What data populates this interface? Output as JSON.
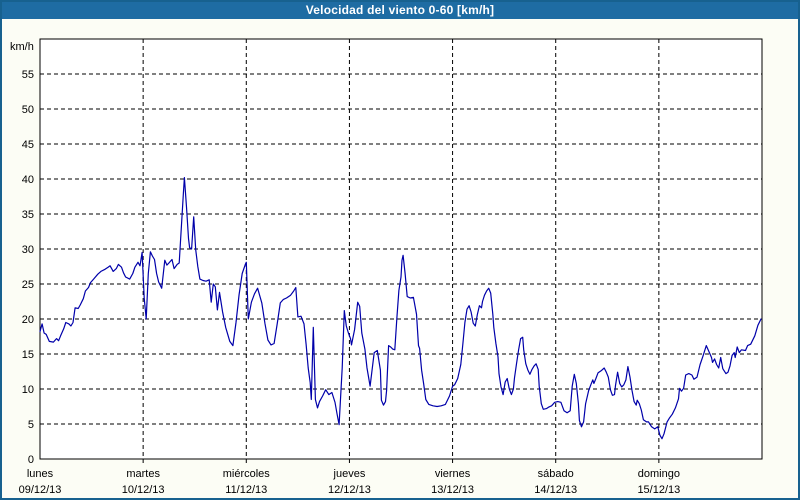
{
  "window": {
    "title": "Velocidad del viento 0-60 [km/h]"
  },
  "colors": {
    "title_bar_bg": "#1e6ca3",
    "title_text": "#ffffff",
    "window_border": "#17618f",
    "window_bg": "#fcfdf5",
    "plot_bg": "#ffffff",
    "grid": "#000000",
    "axis": "#000000",
    "text": "#000000",
    "series_line": "#0000aa"
  },
  "chart_data": {
    "type": "line",
    "title": "Velocidad del viento 0-60 [km/h]",
    "ylabel": "km/h",
    "xlabel": "",
    "ylim": [
      0,
      60
    ],
    "ytick_step": 5,
    "yticks": [
      0,
      5,
      10,
      15,
      20,
      25,
      30,
      35,
      40,
      45,
      50,
      55
    ],
    "grid": "dashed",
    "legend": "none",
    "x_unit": "days",
    "x_range_days": [
      0,
      7
    ],
    "day_labels": [
      {
        "name": "lunes",
        "date": "09/12/13"
      },
      {
        "name": "martes",
        "date": "10/12/13"
      },
      {
        "name": "miércoles",
        "date": "11/12/13"
      },
      {
        "name": "jueves",
        "date": "12/12/13"
      },
      {
        "name": "viernes",
        "date": "13/12/13"
      },
      {
        "name": "sábado",
        "date": "14/12/13"
      },
      {
        "name": "domingo",
        "date": "15/12/13"
      }
    ],
    "series": [
      {
        "name": "Velocidad del viento",
        "color": "#0000aa",
        "points": [
          [
            0.0,
            18.2
          ],
          [
            0.02,
            19.3
          ],
          [
            0.04,
            18.0
          ],
          [
            0.06,
            17.8
          ],
          [
            0.09,
            16.8
          ],
          [
            0.13,
            16.7
          ],
          [
            0.16,
            17.2
          ],
          [
            0.18,
            16.9
          ],
          [
            0.2,
            17.6
          ],
          [
            0.23,
            18.6
          ],
          [
            0.25,
            19.5
          ],
          [
            0.28,
            19.3
          ],
          [
            0.3,
            19.0
          ],
          [
            0.32,
            19.5
          ],
          [
            0.34,
            21.6
          ],
          [
            0.37,
            21.5
          ],
          [
            0.39,
            22.0
          ],
          [
            0.42,
            22.9
          ],
          [
            0.44,
            24.0
          ],
          [
            0.47,
            24.5
          ],
          [
            0.49,
            25.2
          ],
          [
            0.52,
            25.7
          ],
          [
            0.56,
            26.4
          ],
          [
            0.59,
            26.8
          ],
          [
            0.63,
            27.1
          ],
          [
            0.66,
            27.4
          ],
          [
            0.68,
            27.6
          ],
          [
            0.71,
            26.8
          ],
          [
            0.74,
            27.2
          ],
          [
            0.76,
            27.8
          ],
          [
            0.79,
            27.4
          ],
          [
            0.81,
            26.6
          ],
          [
            0.83,
            26.0
          ],
          [
            0.87,
            25.7
          ],
          [
            0.9,
            26.5
          ],
          [
            0.92,
            27.4
          ],
          [
            0.95,
            28.1
          ],
          [
            0.97,
            27.6
          ],
          [
            0.99,
            29.5
          ],
          [
            1.01,
            23.0
          ],
          [
            1.03,
            20.0
          ],
          [
            1.05,
            26.5
          ],
          [
            1.07,
            29.6
          ],
          [
            1.09,
            29.0
          ],
          [
            1.11,
            28.5
          ],
          [
            1.13,
            26.5
          ],
          [
            1.15,
            25.3
          ],
          [
            1.18,
            24.4
          ],
          [
            1.21,
            28.4
          ],
          [
            1.23,
            27.7
          ],
          [
            1.25,
            28.0
          ],
          [
            1.28,
            28.5
          ],
          [
            1.3,
            27.2
          ],
          [
            1.33,
            27.8
          ],
          [
            1.35,
            28.0
          ],
          [
            1.37,
            33.0
          ],
          [
            1.39,
            38.0
          ],
          [
            1.4,
            40.2
          ],
          [
            1.42,
            36.0
          ],
          [
            1.44,
            31.5
          ],
          [
            1.45,
            30.2
          ],
          [
            1.47,
            30.0
          ],
          [
            1.49,
            34.6
          ],
          [
            1.51,
            29.9
          ],
          [
            1.53,
            27.5
          ],
          [
            1.55,
            25.7
          ],
          [
            1.58,
            25.5
          ],
          [
            1.61,
            25.4
          ],
          [
            1.64,
            25.6
          ],
          [
            1.66,
            22.4
          ],
          [
            1.68,
            25.0
          ],
          [
            1.7,
            24.6
          ],
          [
            1.72,
            21.3
          ],
          [
            1.74,
            23.8
          ],
          [
            1.77,
            21.0
          ],
          [
            1.8,
            18.8
          ],
          [
            1.84,
            16.8
          ],
          [
            1.87,
            16.2
          ],
          [
            1.9,
            19.5
          ],
          [
            1.93,
            23.5
          ],
          [
            1.96,
            26.5
          ],
          [
            1.99,
            27.8
          ],
          [
            2.0,
            28.1
          ],
          [
            2.02,
            20.0
          ],
          [
            2.05,
            22.4
          ],
          [
            2.08,
            23.6
          ],
          [
            2.11,
            24.4
          ],
          [
            2.15,
            22.3
          ],
          [
            2.18,
            19.4
          ],
          [
            2.21,
            17.0
          ],
          [
            2.24,
            16.3
          ],
          [
            2.27,
            16.5
          ],
          [
            2.3,
            19.3
          ],
          [
            2.33,
            22.3
          ],
          [
            2.36,
            22.8
          ],
          [
            2.39,
            23.0
          ],
          [
            2.43,
            23.4
          ],
          [
            2.46,
            24.0
          ],
          [
            2.48,
            24.5
          ],
          [
            2.5,
            20.3
          ],
          [
            2.53,
            20.4
          ],
          [
            2.56,
            19.3
          ],
          [
            2.58,
            16.4
          ],
          [
            2.6,
            13.0
          ],
          [
            2.62,
            10.9
          ],
          [
            2.63,
            8.5
          ],
          [
            2.65,
            18.8
          ],
          [
            2.67,
            8.5
          ],
          [
            2.69,
            7.3
          ],
          [
            2.71,
            8.2
          ],
          [
            2.74,
            9.0
          ],
          [
            2.77,
            9.9
          ],
          [
            2.8,
            9.2
          ],
          [
            2.83,
            9.5
          ],
          [
            2.86,
            8.1
          ],
          [
            2.88,
            6.4
          ],
          [
            2.9,
            4.9
          ],
          [
            2.93,
            13.0
          ],
          [
            2.95,
            21.2
          ],
          [
            2.97,
            19.0
          ],
          [
            2.99,
            18.0
          ],
          [
            3.01,
            17.2
          ],
          [
            3.02,
            16.3
          ],
          [
            3.05,
            18.5
          ],
          [
            3.08,
            22.4
          ],
          [
            3.1,
            21.8
          ],
          [
            3.12,
            18.0
          ],
          [
            3.15,
            15.7
          ],
          [
            3.17,
            13.0
          ],
          [
            3.2,
            10.4
          ],
          [
            3.24,
            15.2
          ],
          [
            3.27,
            15.5
          ],
          [
            3.3,
            12.7
          ],
          [
            3.31,
            8.4
          ],
          [
            3.33,
            7.7
          ],
          [
            3.35,
            8.2
          ],
          [
            3.36,
            9.8
          ],
          [
            3.38,
            16.2
          ],
          [
            3.4,
            16.0
          ],
          [
            3.42,
            15.7
          ],
          [
            3.44,
            15.6
          ],
          [
            3.46,
            20.2
          ],
          [
            3.48,
            24.1
          ],
          [
            3.5,
            26.0
          ],
          [
            3.51,
            28.4
          ],
          [
            3.52,
            29.1
          ],
          [
            3.54,
            26.5
          ],
          [
            3.56,
            23.2
          ],
          [
            3.59,
            23.0
          ],
          [
            3.62,
            23.1
          ],
          [
            3.65,
            20.7
          ],
          [
            3.67,
            16.2
          ],
          [
            3.68,
            15.8
          ],
          [
            3.7,
            12.7
          ],
          [
            3.72,
            10.7
          ],
          [
            3.74,
            8.5
          ],
          [
            3.77,
            7.8
          ],
          [
            3.81,
            7.6
          ],
          [
            3.85,
            7.5
          ],
          [
            3.89,
            7.6
          ],
          [
            3.93,
            7.8
          ],
          [
            3.97,
            9.0
          ],
          [
            4.0,
            10.4
          ],
          [
            4.02,
            10.6
          ],
          [
            4.05,
            11.5
          ],
          [
            4.08,
            13.5
          ],
          [
            4.1,
            16.5
          ],
          [
            4.12,
            19.5
          ],
          [
            4.14,
            21.4
          ],
          [
            4.16,
            21.9
          ],
          [
            4.18,
            21.0
          ],
          [
            4.2,
            19.4
          ],
          [
            4.22,
            19.0
          ],
          [
            4.24,
            20.6
          ],
          [
            4.26,
            21.9
          ],
          [
            4.28,
            21.6
          ],
          [
            4.29,
            22.5
          ],
          [
            4.31,
            23.4
          ],
          [
            4.33,
            24.0
          ],
          [
            4.35,
            24.4
          ],
          [
            4.37,
            23.7
          ],
          [
            4.39,
            20.7
          ],
          [
            4.4,
            18.8
          ],
          [
            4.42,
            16.5
          ],
          [
            4.44,
            14.6
          ],
          [
            4.45,
            12.2
          ],
          [
            4.47,
            10.3
          ],
          [
            4.49,
            9.2
          ],
          [
            4.51,
            11.0
          ],
          [
            4.53,
            11.5
          ],
          [
            4.55,
            10.0
          ],
          [
            4.57,
            9.2
          ],
          [
            4.59,
            10.0
          ],
          [
            4.6,
            11.6
          ],
          [
            4.62,
            13.6
          ],
          [
            4.64,
            15.6
          ],
          [
            4.66,
            17.2
          ],
          [
            4.68,
            17.4
          ],
          [
            4.69,
            15.6
          ],
          [
            4.71,
            13.6
          ],
          [
            4.73,
            12.7
          ],
          [
            4.75,
            12.1
          ],
          [
            4.77,
            12.8
          ],
          [
            4.79,
            13.3
          ],
          [
            4.81,
            13.6
          ],
          [
            4.83,
            12.8
          ],
          [
            4.84,
            10.4
          ],
          [
            4.86,
            7.9
          ],
          [
            4.88,
            7.1
          ],
          [
            4.91,
            7.2
          ],
          [
            4.93,
            7.4
          ],
          [
            4.96,
            7.6
          ],
          [
            4.99,
            8.1
          ],
          [
            5.02,
            8.2
          ],
          [
            5.05,
            8.1
          ],
          [
            5.08,
            6.9
          ],
          [
            5.11,
            6.6
          ],
          [
            5.14,
            6.9
          ],
          [
            5.16,
            10.4
          ],
          [
            5.18,
            12.1
          ],
          [
            5.2,
            10.8
          ],
          [
            5.22,
            7.9
          ],
          [
            5.23,
            5.5
          ],
          [
            5.25,
            4.6
          ],
          [
            5.27,
            5.3
          ],
          [
            5.29,
            7.9
          ],
          [
            5.32,
            9.8
          ],
          [
            5.34,
            10.6
          ],
          [
            5.36,
            11.3
          ],
          [
            5.37,
            10.8
          ],
          [
            5.39,
            11.5
          ],
          [
            5.41,
            12.3
          ],
          [
            5.44,
            12.6
          ],
          [
            5.47,
            13.0
          ],
          [
            5.49,
            12.4
          ],
          [
            5.51,
            11.7
          ],
          [
            5.53,
            9.9
          ],
          [
            5.55,
            9.1
          ],
          [
            5.57,
            9.2
          ],
          [
            5.58,
            10.5
          ],
          [
            5.6,
            12.4
          ],
          [
            5.62,
            10.8
          ],
          [
            5.64,
            10.3
          ],
          [
            5.66,
            10.6
          ],
          [
            5.68,
            11.3
          ],
          [
            5.7,
            13.2
          ],
          [
            5.72,
            11.7
          ],
          [
            5.74,
            9.8
          ],
          [
            5.76,
            8.2
          ],
          [
            5.78,
            7.7
          ],
          [
            5.79,
            8.4
          ],
          [
            5.81,
            7.9
          ],
          [
            5.83,
            7.0
          ],
          [
            5.85,
            5.6
          ],
          [
            5.88,
            5.3
          ],
          [
            5.9,
            5.3
          ],
          [
            5.93,
            4.6
          ],
          [
            5.96,
            4.3
          ],
          [
            5.99,
            4.6
          ],
          [
            6.01,
            3.4
          ],
          [
            6.03,
            2.9
          ],
          [
            6.05,
            3.6
          ],
          [
            6.08,
            5.3
          ],
          [
            6.1,
            5.8
          ],
          [
            6.13,
            6.4
          ],
          [
            6.16,
            7.3
          ],
          [
            6.19,
            8.6
          ],
          [
            6.2,
            10.1
          ],
          [
            6.22,
            9.7
          ],
          [
            6.24,
            10.1
          ],
          [
            6.26,
            12.0
          ],
          [
            6.29,
            12.2
          ],
          [
            6.32,
            12.0
          ],
          [
            6.34,
            11.4
          ],
          [
            6.37,
            11.7
          ],
          [
            6.4,
            13.5
          ],
          [
            6.43,
            14.8
          ],
          [
            6.46,
            16.2
          ],
          [
            6.49,
            15.2
          ],
          [
            6.51,
            14.5
          ],
          [
            6.52,
            13.8
          ],
          [
            6.54,
            14.3
          ],
          [
            6.56,
            13.5
          ],
          [
            6.58,
            13.0
          ],
          [
            6.6,
            14.5
          ],
          [
            6.62,
            12.9
          ],
          [
            6.65,
            12.2
          ],
          [
            6.67,
            12.4
          ],
          [
            6.69,
            13.3
          ],
          [
            6.71,
            14.8
          ],
          [
            6.73,
            15.2
          ],
          [
            6.74,
            14.5
          ],
          [
            6.76,
            16.0
          ],
          [
            6.78,
            15.2
          ],
          [
            6.8,
            15.6
          ],
          [
            6.84,
            15.5
          ],
          [
            6.86,
            16.2
          ],
          [
            6.89,
            16.4
          ],
          [
            6.93,
            17.6
          ],
          [
            6.96,
            19.1
          ],
          [
            6.99,
            20.0
          ]
        ]
      }
    ]
  }
}
